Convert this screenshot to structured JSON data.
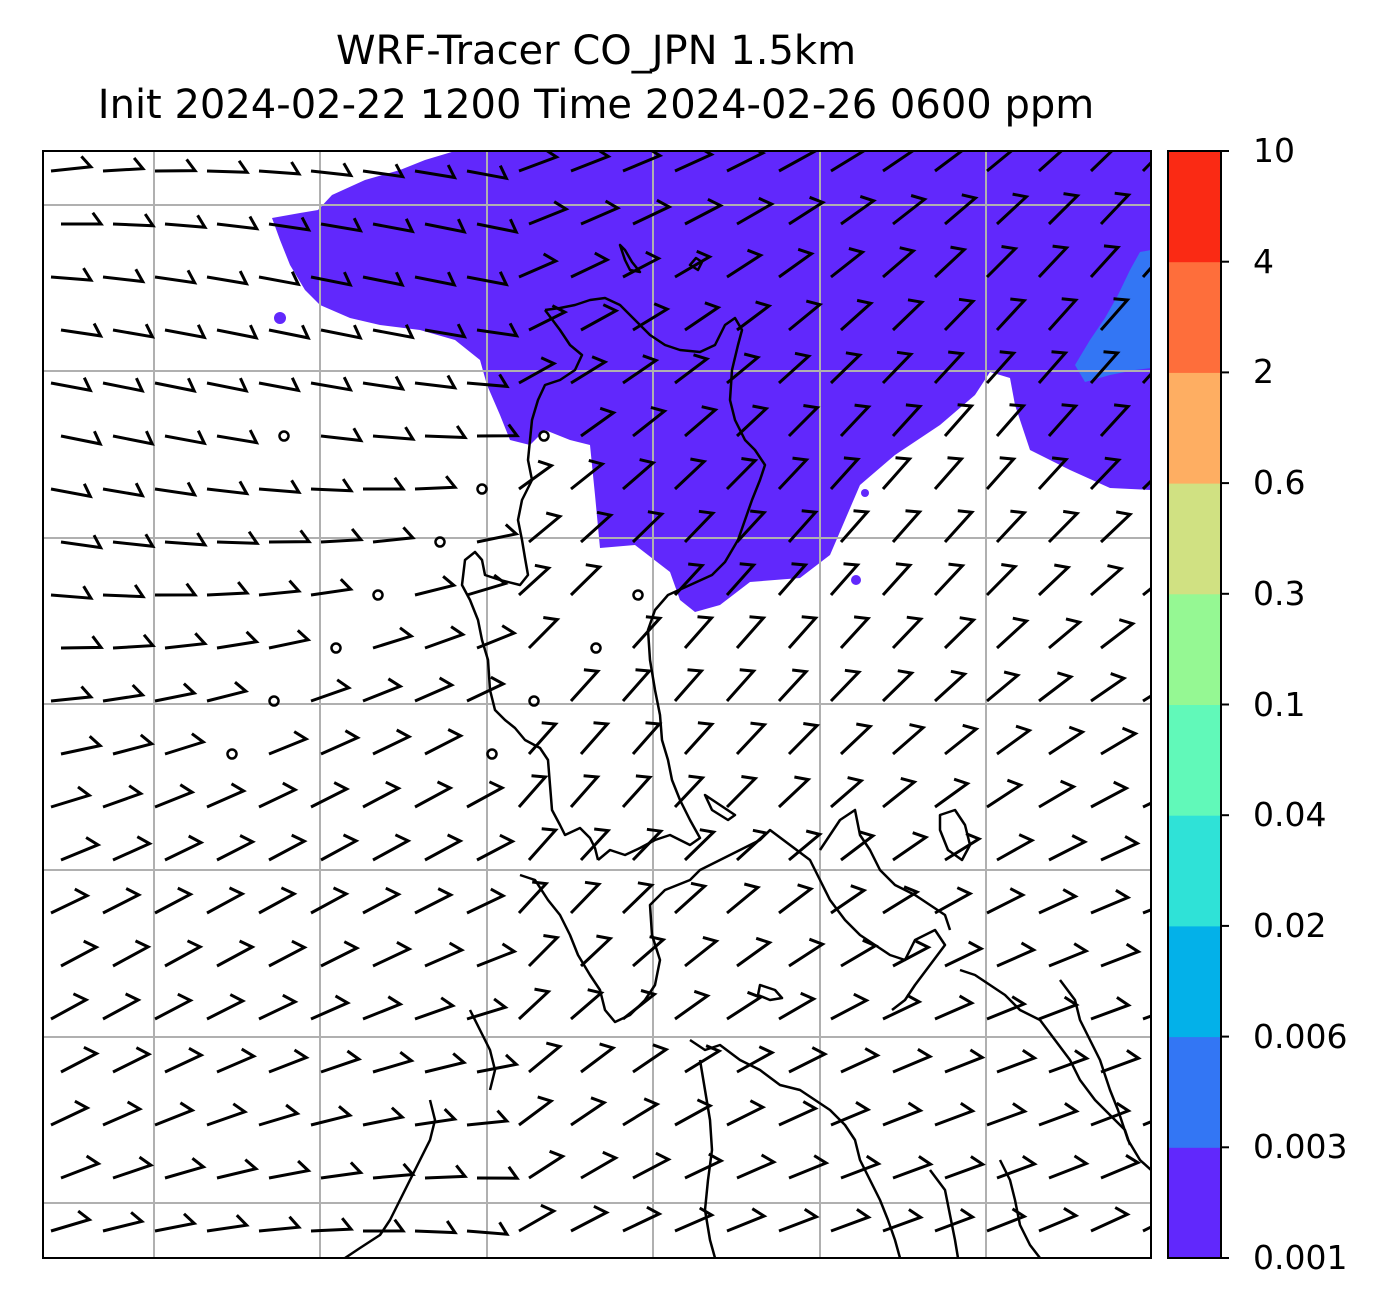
{
  "title_line1": "WRF-Tracer CO_JPN 1.5km",
  "title_line2": "Init 2024-02-22 1200 Time 2024-02-26 0600 ppm",
  "colorbar": {
    "levels": [
      "0.001",
      "0.003",
      "0.006",
      "0.02",
      "0.04",
      "0.1",
      "0.3",
      "0.6",
      "2",
      "4",
      "10"
    ],
    "colors": [
      "#6128fc",
      "#3376f4",
      "#03b1e9",
      "#2fe2d7",
      "#61f9b9",
      "#95f893",
      "#d0e182",
      "#feae62",
      "#fe6e3b",
      "#fa2a14"
    ]
  },
  "map": {
    "tracer_color": "#6128fc",
    "tracer_low_color": "#3376f4",
    "grid_color": "#b0b0b0",
    "coastline_color": "#000000",
    "wind_barb_color": "#000000"
  }
}
